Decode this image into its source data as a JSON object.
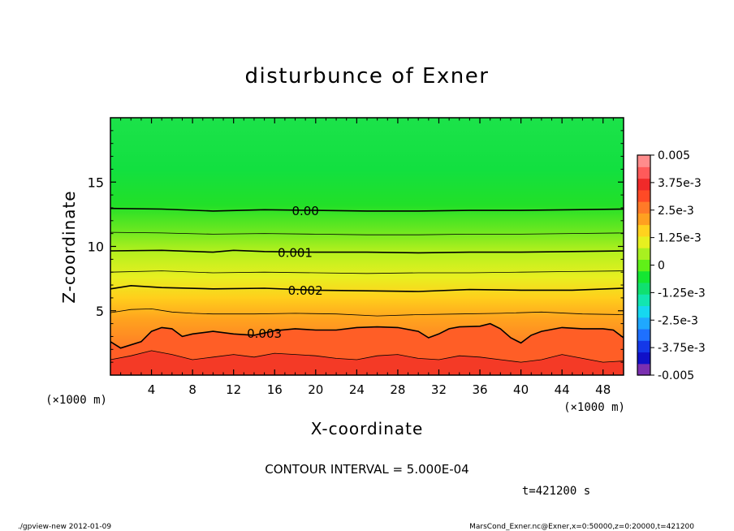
{
  "chart_data": {
    "type": "heatmap",
    "title": "disturbunce of Exner",
    "xlabel": "X-coordinate",
    "ylabel": "Z-coordinate",
    "x_unit_label": "(×1000 m)",
    "y_unit_label": "(×1000 m)",
    "xlim": [
      0,
      50
    ],
    "ylim": [
      0,
      20
    ],
    "x_ticks": [
      4,
      8,
      12,
      16,
      20,
      24,
      28,
      32,
      36,
      40,
      44,
      48
    ],
    "y_ticks": [
      5,
      10,
      15
    ],
    "x_tick_labels": [
      "4",
      "8",
      "12",
      "16",
      "20",
      "24",
      "28",
      "32",
      "36",
      "40",
      "44",
      "48"
    ],
    "y_tick_labels": [
      "5",
      "10",
      "15"
    ],
    "contour_interval_text": "CONTOUR INTERVAL = 5.000E-04",
    "time_text": "t=421200 s",
    "footer_left": "./gpview-new   2012-01-09",
    "footer_right": "MarsCond_Exner.nc@Exner,x=0:50000,z=0:20000,t=421200",
    "colorbar": {
      "range": [
        -0.005,
        0.005
      ],
      "tick_values": [
        0.005,
        0.00375,
        0.0025,
        0.00125,
        0,
        -0.00125,
        -0.0025,
        -0.00375,
        -0.005
      ],
      "tick_labels": [
        "0.005",
        "3.75e-3",
        "2.5e-3",
        "1.25e-3",
        "0",
        "-1.25e-3",
        "-2.5e-3",
        "-3.75e-3",
        "-0.005"
      ],
      "colors_bottom_to_top": [
        "#7a2fb0",
        "#1010c8",
        "#1438e8",
        "#1e70ff",
        "#1fa8ff",
        "#16d8f0",
        "#12e6b0",
        "#10e070",
        "#14e632",
        "#60f018",
        "#a8f020",
        "#e6f020",
        "#ffd21e",
        "#ffa020",
        "#ff7a28",
        "#ff4a26",
        "#f02a2a",
        "#ff5a5a",
        "#ff8c8c"
      ]
    },
    "contour_labels": [
      {
        "text": "0.00",
        "value": 0.0
      },
      {
        "text": "0.001",
        "value": 0.001
      },
      {
        "text": "0.002",
        "value": 0.002
      },
      {
        "text": "0.003",
        "value": 0.003
      }
    ],
    "contour_lines": [
      {
        "value": 0.0,
        "bold": true,
        "x": [
          0,
          5,
          10,
          15,
          20,
          25,
          30,
          35,
          40,
          45,
          50
        ],
        "z": [
          12.95,
          12.9,
          12.75,
          12.85,
          12.8,
          12.75,
          12.75,
          12.8,
          12.8,
          12.85,
          12.9
        ]
      },
      {
        "value": 0.0005,
        "bold": false,
        "x": [
          0,
          5,
          10,
          15,
          20,
          25,
          30,
          35,
          40,
          45,
          50
        ],
        "z": [
          11.1,
          11.05,
          10.95,
          11.0,
          10.95,
          10.9,
          10.9,
          10.95,
          10.95,
          11.0,
          11.05
        ]
      },
      {
        "value": 0.001,
        "bold": true,
        "x": [
          0,
          5,
          10,
          12,
          15,
          20,
          25,
          30,
          35,
          40,
          45,
          50
        ],
        "z": [
          9.65,
          9.7,
          9.55,
          9.7,
          9.6,
          9.55,
          9.55,
          9.5,
          9.55,
          9.55,
          9.6,
          9.65
        ]
      },
      {
        "value": 0.0015,
        "bold": false,
        "x": [
          0,
          5,
          10,
          15,
          20,
          25,
          30,
          35,
          40,
          45,
          50
        ],
        "z": [
          8.0,
          8.1,
          7.95,
          8.0,
          7.95,
          7.9,
          7.95,
          7.95,
          8.0,
          8.05,
          8.1
        ]
      },
      {
        "value": 0.002,
        "bold": true,
        "x": [
          0,
          2,
          5,
          10,
          15,
          20,
          25,
          30,
          35,
          40,
          45,
          50
        ],
        "z": [
          6.7,
          6.95,
          6.8,
          6.7,
          6.75,
          6.6,
          6.55,
          6.5,
          6.65,
          6.6,
          6.6,
          6.75
        ]
      },
      {
        "value": 0.0025,
        "bold": false,
        "x": [
          0,
          2,
          4,
          6,
          8,
          10,
          14,
          18,
          22,
          26,
          30,
          34,
          38,
          42,
          46,
          50
        ],
        "z": [
          4.85,
          5.1,
          5.15,
          4.9,
          4.8,
          4.75,
          4.75,
          4.8,
          4.75,
          4.6,
          4.7,
          4.75,
          4.8,
          4.9,
          4.75,
          4.7
        ]
      },
      {
        "value": 0.003,
        "bold": true,
        "x": [
          0,
          1,
          3,
          4,
          5,
          6,
          7,
          8,
          10,
          12,
          14,
          16,
          18,
          20,
          22,
          24,
          26,
          28,
          30,
          31,
          32,
          33,
          34,
          36,
          37,
          38,
          39,
          40,
          41,
          42,
          44,
          46,
          48,
          49,
          50
        ],
        "z": [
          2.6,
          2.1,
          2.6,
          3.4,
          3.7,
          3.6,
          3.0,
          3.2,
          3.4,
          3.2,
          3.1,
          3.45,
          3.6,
          3.5,
          3.5,
          3.7,
          3.75,
          3.7,
          3.4,
          2.9,
          3.2,
          3.6,
          3.75,
          3.8,
          4.0,
          3.6,
          2.9,
          2.5,
          3.1,
          3.4,
          3.7,
          3.6,
          3.6,
          3.5,
          2.9
        ]
      },
      {
        "value": 0.0035,
        "bold": false,
        "x": [
          0,
          2,
          4,
          6,
          8,
          10,
          12,
          14,
          16,
          18,
          20,
          22,
          24,
          26,
          28,
          30,
          32,
          34,
          36,
          38,
          40,
          42,
          44,
          46,
          48,
          50
        ],
        "z": [
          1.2,
          1.5,
          1.9,
          1.6,
          1.2,
          1.4,
          1.6,
          1.4,
          1.7,
          1.6,
          1.5,
          1.3,
          1.2,
          1.5,
          1.6,
          1.3,
          1.2,
          1.5,
          1.4,
          1.2,
          1.0,
          1.2,
          1.6,
          1.3,
          1.0,
          1.1
        ]
      }
    ]
  }
}
